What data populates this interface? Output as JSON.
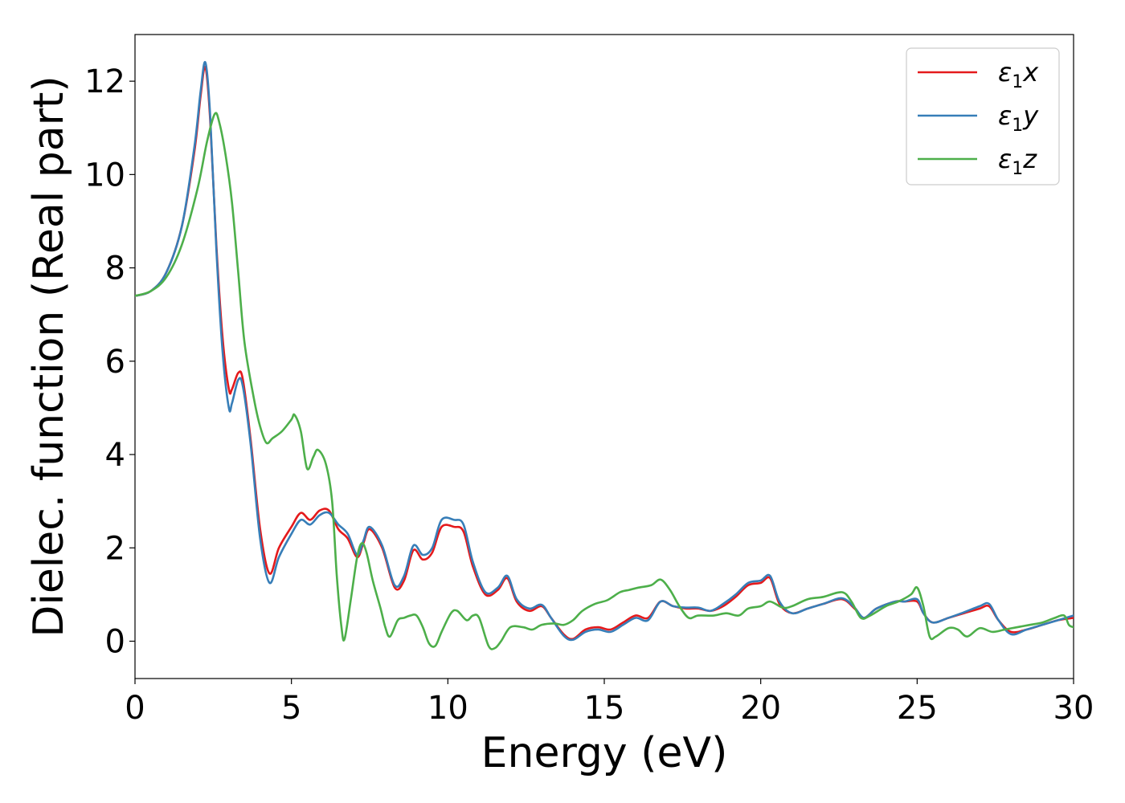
{
  "chart_data": {
    "type": "line",
    "title": "",
    "xlabel": "Energy (eV)",
    "ylabel": "Dielec. function (Real part)",
    "xlim": [
      0,
      30
    ],
    "ylim": [
      -0.8,
      13.0
    ],
    "xticks": [
      0,
      5,
      10,
      15,
      20,
      25,
      30
    ],
    "xtick_labels": [
      "0",
      "5",
      "10",
      "15",
      "20",
      "25",
      "30"
    ],
    "yticks": [
      0,
      2,
      4,
      6,
      8,
      10,
      12
    ],
    "ytick_labels": [
      "0",
      "2",
      "4",
      "6",
      "8",
      "10",
      "12"
    ],
    "grid": false,
    "legend_position": "top-right",
    "series": [
      {
        "name": "ε1x",
        "legend_base": "ε",
        "legend_sub": "1",
        "legend_suffix": "x",
        "color": "#e41a1c",
        "points": [
          [
            0,
            7.4
          ],
          [
            0.5,
            7.5
          ],
          [
            1.0,
            7.9
          ],
          [
            1.5,
            8.9
          ],
          [
            1.9,
            10.5
          ],
          [
            2.1,
            11.7
          ],
          [
            2.25,
            12.3
          ],
          [
            2.4,
            11.2
          ],
          [
            2.6,
            8.5
          ],
          [
            2.8,
            6.5
          ],
          [
            3.0,
            5.4
          ],
          [
            3.1,
            5.4
          ],
          [
            3.3,
            5.75
          ],
          [
            3.45,
            5.6
          ],
          [
            3.7,
            4.3
          ],
          [
            4.0,
            2.4
          ],
          [
            4.3,
            1.45
          ],
          [
            4.6,
            2.0
          ],
          [
            5.0,
            2.45
          ],
          [
            5.3,
            2.75
          ],
          [
            5.6,
            2.6
          ],
          [
            5.9,
            2.8
          ],
          [
            6.2,
            2.8
          ],
          [
            6.5,
            2.4
          ],
          [
            6.8,
            2.2
          ],
          [
            7.1,
            1.8
          ],
          [
            7.3,
            2.1
          ],
          [
            7.5,
            2.4
          ],
          [
            7.9,
            2.0
          ],
          [
            8.3,
            1.15
          ],
          [
            8.6,
            1.3
          ],
          [
            8.9,
            1.95
          ],
          [
            9.2,
            1.75
          ],
          [
            9.5,
            1.9
          ],
          [
            9.8,
            2.45
          ],
          [
            10.2,
            2.45
          ],
          [
            10.5,
            2.35
          ],
          [
            10.8,
            1.6
          ],
          [
            11.2,
            1.0
          ],
          [
            11.6,
            1.1
          ],
          [
            11.9,
            1.35
          ],
          [
            12.2,
            0.85
          ],
          [
            12.6,
            0.65
          ],
          [
            13.0,
            0.75
          ],
          [
            13.3,
            0.5
          ],
          [
            13.7,
            0.15
          ],
          [
            14.0,
            0.05
          ],
          [
            14.4,
            0.25
          ],
          [
            14.8,
            0.3
          ],
          [
            15.2,
            0.25
          ],
          [
            15.6,
            0.4
          ],
          [
            16.0,
            0.55
          ],
          [
            16.4,
            0.5
          ],
          [
            16.8,
            0.85
          ],
          [
            17.2,
            0.75
          ],
          [
            17.6,
            0.7
          ],
          [
            18.0,
            0.7
          ],
          [
            18.4,
            0.65
          ],
          [
            18.8,
            0.75
          ],
          [
            19.2,
            0.95
          ],
          [
            19.6,
            1.2
          ],
          [
            20.0,
            1.25
          ],
          [
            20.3,
            1.35
          ],
          [
            20.6,
            0.8
          ],
          [
            21.0,
            0.6
          ],
          [
            21.5,
            0.7
          ],
          [
            22.0,
            0.8
          ],
          [
            22.6,
            0.9
          ],
          [
            23.0,
            0.7
          ],
          [
            23.3,
            0.5
          ],
          [
            23.7,
            0.7
          ],
          [
            24.3,
            0.85
          ],
          [
            24.6,
            0.85
          ],
          [
            25.0,
            0.85
          ],
          [
            25.2,
            0.6
          ],
          [
            25.5,
            0.4
          ],
          [
            26.0,
            0.5
          ],
          [
            26.5,
            0.6
          ],
          [
            27.0,
            0.7
          ],
          [
            27.3,
            0.75
          ],
          [
            27.6,
            0.45
          ],
          [
            28.0,
            0.2
          ],
          [
            28.5,
            0.25
          ],
          [
            29.0,
            0.35
          ],
          [
            29.5,
            0.45
          ],
          [
            30.0,
            0.5
          ]
        ]
      },
      {
        "name": "ε1y",
        "legend_base": "ε",
        "legend_sub": "1",
        "legend_suffix": "y",
        "color": "#377eb8",
        "points": [
          [
            0,
            7.4
          ],
          [
            0.5,
            7.5
          ],
          [
            1.0,
            7.9
          ],
          [
            1.5,
            8.9
          ],
          [
            1.9,
            10.6
          ],
          [
            2.1,
            11.8
          ],
          [
            2.25,
            12.4
          ],
          [
            2.4,
            11.3
          ],
          [
            2.6,
            8.4
          ],
          [
            2.8,
            6.2
          ],
          [
            3.0,
            5.0
          ],
          [
            3.1,
            5.1
          ],
          [
            3.3,
            5.6
          ],
          [
            3.45,
            5.45
          ],
          [
            3.7,
            4.2
          ],
          [
            4.0,
            2.2
          ],
          [
            4.3,
            1.25
          ],
          [
            4.6,
            1.8
          ],
          [
            5.0,
            2.3
          ],
          [
            5.3,
            2.6
          ],
          [
            5.6,
            2.5
          ],
          [
            5.9,
            2.7
          ],
          [
            6.2,
            2.75
          ],
          [
            6.5,
            2.5
          ],
          [
            6.8,
            2.3
          ],
          [
            7.1,
            1.85
          ],
          [
            7.3,
            2.15
          ],
          [
            7.5,
            2.45
          ],
          [
            7.9,
            2.05
          ],
          [
            8.3,
            1.2
          ],
          [
            8.6,
            1.4
          ],
          [
            8.9,
            2.05
          ],
          [
            9.2,
            1.85
          ],
          [
            9.5,
            2.0
          ],
          [
            9.8,
            2.6
          ],
          [
            10.2,
            2.6
          ],
          [
            10.5,
            2.5
          ],
          [
            10.8,
            1.7
          ],
          [
            11.2,
            1.05
          ],
          [
            11.6,
            1.15
          ],
          [
            11.9,
            1.4
          ],
          [
            12.2,
            0.9
          ],
          [
            12.6,
            0.7
          ],
          [
            13.0,
            0.78
          ],
          [
            13.3,
            0.5
          ],
          [
            13.7,
            0.12
          ],
          [
            14.0,
            0.03
          ],
          [
            14.4,
            0.2
          ],
          [
            14.8,
            0.25
          ],
          [
            15.2,
            0.2
          ],
          [
            15.6,
            0.35
          ],
          [
            16.0,
            0.5
          ],
          [
            16.4,
            0.45
          ],
          [
            16.8,
            0.85
          ],
          [
            17.2,
            0.75
          ],
          [
            17.6,
            0.72
          ],
          [
            18.0,
            0.72
          ],
          [
            18.4,
            0.65
          ],
          [
            18.8,
            0.8
          ],
          [
            19.2,
            1.0
          ],
          [
            19.6,
            1.25
          ],
          [
            20.0,
            1.3
          ],
          [
            20.3,
            1.4
          ],
          [
            20.6,
            0.85
          ],
          [
            21.0,
            0.6
          ],
          [
            21.5,
            0.7
          ],
          [
            22.0,
            0.8
          ],
          [
            22.6,
            0.92
          ],
          [
            23.0,
            0.72
          ],
          [
            23.3,
            0.5
          ],
          [
            23.7,
            0.7
          ],
          [
            24.3,
            0.85
          ],
          [
            24.6,
            0.85
          ],
          [
            25.0,
            0.9
          ],
          [
            25.2,
            0.6
          ],
          [
            25.5,
            0.4
          ],
          [
            26.0,
            0.5
          ],
          [
            26.5,
            0.62
          ],
          [
            27.0,
            0.75
          ],
          [
            27.3,
            0.8
          ],
          [
            27.6,
            0.45
          ],
          [
            28.0,
            0.15
          ],
          [
            28.5,
            0.25
          ],
          [
            29.0,
            0.35
          ],
          [
            29.5,
            0.45
          ],
          [
            30.0,
            0.55
          ]
        ]
      },
      {
        "name": "ε1z",
        "legend_base": "ε",
        "legend_sub": "1",
        "legend_suffix": "z",
        "color": "#4daf4a",
        "points": [
          [
            0,
            7.4
          ],
          [
            0.5,
            7.5
          ],
          [
            1.0,
            7.8
          ],
          [
            1.5,
            8.5
          ],
          [
            2.0,
            9.7
          ],
          [
            2.3,
            10.7
          ],
          [
            2.55,
            11.3
          ],
          [
            2.7,
            11.1
          ],
          [
            2.9,
            10.4
          ],
          [
            3.1,
            9.4
          ],
          [
            3.3,
            7.9
          ],
          [
            3.5,
            6.4
          ],
          [
            3.8,
            5.2
          ],
          [
            4.0,
            4.6
          ],
          [
            4.2,
            4.25
          ],
          [
            4.4,
            4.35
          ],
          [
            4.7,
            4.5
          ],
          [
            5.0,
            4.75
          ],
          [
            5.1,
            4.85
          ],
          [
            5.3,
            4.5
          ],
          [
            5.5,
            3.7
          ],
          [
            5.7,
            3.95
          ],
          [
            5.85,
            4.1
          ],
          [
            6.1,
            3.8
          ],
          [
            6.3,
            3.0
          ],
          [
            6.45,
            1.4
          ],
          [
            6.6,
            0.3
          ],
          [
            6.7,
            0.05
          ],
          [
            6.9,
            0.9
          ],
          [
            7.1,
            1.8
          ],
          [
            7.25,
            2.1
          ],
          [
            7.4,
            1.9
          ],
          [
            7.6,
            1.3
          ],
          [
            7.85,
            0.7
          ],
          [
            8.0,
            0.3
          ],
          [
            8.15,
            0.1
          ],
          [
            8.4,
            0.45
          ],
          [
            8.6,
            0.5
          ],
          [
            8.8,
            0.55
          ],
          [
            9.0,
            0.55
          ],
          [
            9.2,
            0.3
          ],
          [
            9.4,
            -0.05
          ],
          [
            9.6,
            -0.1
          ],
          [
            9.8,
            0.2
          ],
          [
            10.1,
            0.6
          ],
          [
            10.3,
            0.65
          ],
          [
            10.6,
            0.45
          ],
          [
            10.8,
            0.55
          ],
          [
            11.0,
            0.5
          ],
          [
            11.3,
            -0.1
          ],
          [
            11.5,
            -0.15
          ],
          [
            11.7,
            0.0
          ],
          [
            12.0,
            0.3
          ],
          [
            12.4,
            0.3
          ],
          [
            12.7,
            0.25
          ],
          [
            13.0,
            0.35
          ],
          [
            13.4,
            0.38
          ],
          [
            13.7,
            0.35
          ],
          [
            14.0,
            0.45
          ],
          [
            14.3,
            0.65
          ],
          [
            14.7,
            0.8
          ],
          [
            15.1,
            0.88
          ],
          [
            15.5,
            1.05
          ],
          [
            15.8,
            1.1
          ],
          [
            16.1,
            1.15
          ],
          [
            16.5,
            1.2
          ],
          [
            16.8,
            1.32
          ],
          [
            17.1,
            1.1
          ],
          [
            17.4,
            0.75
          ],
          [
            17.7,
            0.5
          ],
          [
            18.0,
            0.55
          ],
          [
            18.5,
            0.55
          ],
          [
            18.9,
            0.6
          ],
          [
            19.3,
            0.55
          ],
          [
            19.6,
            0.7
          ],
          [
            20.0,
            0.75
          ],
          [
            20.3,
            0.85
          ],
          [
            20.7,
            0.72
          ],
          [
            21.0,
            0.75
          ],
          [
            21.5,
            0.9
          ],
          [
            22.0,
            0.95
          ],
          [
            22.6,
            1.05
          ],
          [
            22.9,
            0.85
          ],
          [
            23.2,
            0.5
          ],
          [
            23.5,
            0.55
          ],
          [
            24.0,
            0.75
          ],
          [
            24.4,
            0.85
          ],
          [
            24.8,
            1.0
          ],
          [
            25.0,
            1.15
          ],
          [
            25.2,
            0.75
          ],
          [
            25.4,
            0.1
          ],
          [
            25.6,
            0.1
          ],
          [
            26.0,
            0.28
          ],
          [
            26.3,
            0.25
          ],
          [
            26.6,
            0.1
          ],
          [
            27.0,
            0.28
          ],
          [
            27.4,
            0.2
          ],
          [
            27.8,
            0.25
          ],
          [
            28.2,
            0.3
          ],
          [
            28.6,
            0.35
          ],
          [
            29.0,
            0.4
          ],
          [
            29.4,
            0.5
          ],
          [
            29.7,
            0.55
          ],
          [
            29.85,
            0.35
          ],
          [
            30.0,
            0.3
          ]
        ]
      }
    ]
  }
}
